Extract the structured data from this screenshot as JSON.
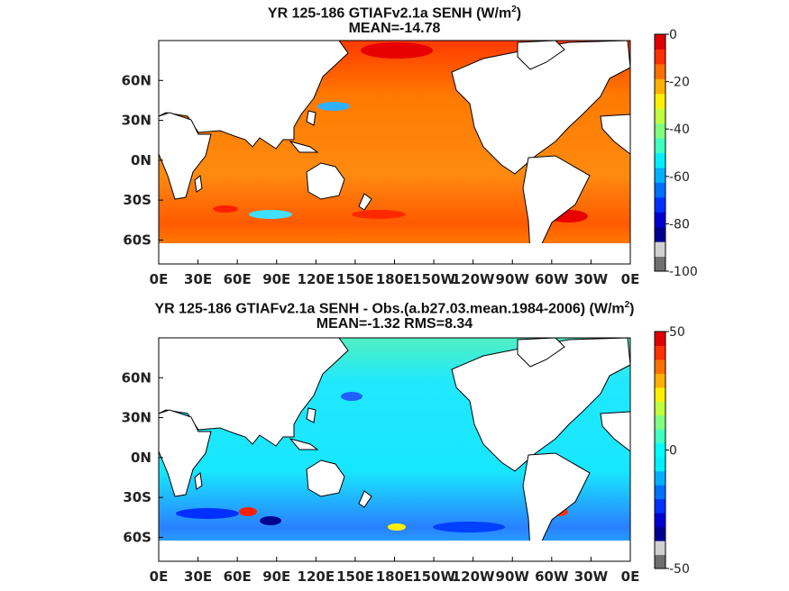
{
  "chart_data": [
    {
      "type": "heatmap",
      "title_main": "YR 125-186 GTIAFv2.1a  SENH (W/m",
      "title_sup": "2",
      "title_tail": ")",
      "subtitle": "MEAN=-14.78",
      "x_tick_labels": [
        "0E",
        "30E",
        "60E",
        "90E",
        "120E",
        "150E",
        "180E",
        "150W",
        "120W",
        "90W",
        "60W",
        "30W",
        "0E"
      ],
      "y_tick_labels": [
        "60N",
        "30N",
        "0N",
        "30S",
        "60S"
      ],
      "y_tick_values": [
        60,
        30,
        0,
        -30,
        -60
      ],
      "xlim": [
        0,
        360
      ],
      "ylim": [
        -78,
        90
      ],
      "colorbar": {
        "min": -100,
        "max": 0,
        "tick_labels": [
          "0",
          "-20",
          "-40",
          "-60",
          "-80",
          "-100"
        ],
        "colors": [
          "#6f6f6f",
          "#d0d0d0",
          "#00008f",
          "#0000d0",
          "#0030ff",
          "#0070ff",
          "#00b0ff",
          "#00efff",
          "#40ffbf",
          "#80ff80",
          "#c0ff40",
          "#ffef00",
          "#ffb000",
          "#ff7000",
          "#ff3000",
          "#e00000"
        ]
      }
    },
    {
      "type": "heatmap",
      "title_main": "YR 125-186 GTIAFv2.1a SENH - Obs.(a.b27.03.mean.1984-2006) (W/m",
      "title_sup": "2",
      "title_tail": ")",
      "subtitle": "MEAN=-1.32 RMS=8.34",
      "x_tick_labels": [
        "0E",
        "30E",
        "60E",
        "90E",
        "120E",
        "150E",
        "180E",
        "150W",
        "120W",
        "90W",
        "60W",
        "30W",
        "0E"
      ],
      "y_tick_labels": [
        "60N",
        "30N",
        "0N",
        "30S",
        "60S"
      ],
      "y_tick_values": [
        60,
        30,
        0,
        -30,
        -60
      ],
      "xlim": [
        0,
        360
      ],
      "ylim": [
        -78,
        90
      ],
      "colorbar": {
        "min": -50,
        "max": 50,
        "tick_labels": [
          "50",
          "0",
          "-50"
        ],
        "colors": [
          "#6f6f6f",
          "#d0d0d0",
          "#00008f",
          "#0000d0",
          "#0030ff",
          "#0070ff",
          "#00b0ff",
          "#00efff",
          "#00ffff",
          "#40ffbf",
          "#80ff80",
          "#c0ff40",
          "#ffef00",
          "#ffb000",
          "#ff7000",
          "#ff3000",
          "#e00000"
        ]
      }
    }
  ]
}
